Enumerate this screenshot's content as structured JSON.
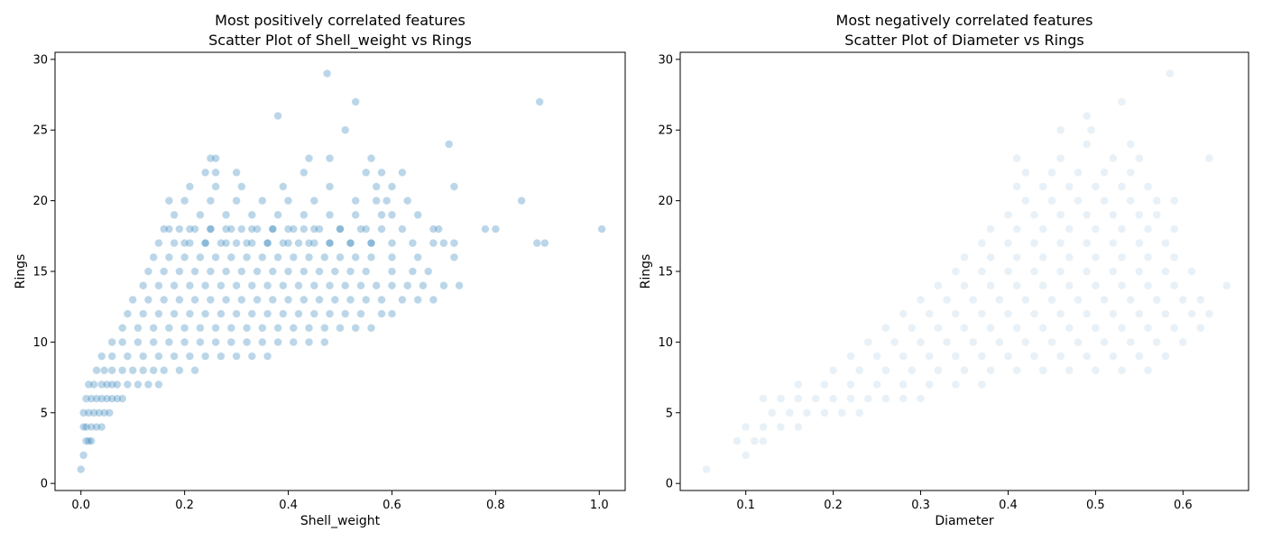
{
  "chart_data": [
    {
      "type": "scatter",
      "title": "Most positively correlated features",
      "subtitle": "Scatter Plot of Shell_weight vs Rings",
      "xlabel": "Shell_weight",
      "ylabel": "Rings",
      "xlim": [
        -0.05,
        1.05
      ],
      "ylim": [
        -0.5,
        30.5
      ],
      "xticks": [
        "0.0",
        "0.2",
        "0.4",
        "0.6",
        "0.8",
        "1.0"
      ],
      "yticks": [
        "0",
        "5",
        "10",
        "15",
        "20",
        "25",
        "30"
      ],
      "grid": false,
      "point_color": "#1f77b4",
      "point_alpha": 0.3,
      "x": [
        0.0,
        0.005,
        0.01,
        0.015,
        0.02,
        0.005,
        0.01,
        0.02,
        0.03,
        0.04,
        0.005,
        0.015,
        0.025,
        0.035,
        0.045,
        0.055,
        0.01,
        0.02,
        0.03,
        0.04,
        0.05,
        0.06,
        0.07,
        0.08,
        0.015,
        0.025,
        0.04,
        0.05,
        0.06,
        0.07,
        0.09,
        0.11,
        0.13,
        0.15,
        0.03,
        0.045,
        0.06,
        0.08,
        0.1,
        0.12,
        0.14,
        0.16,
        0.19,
        0.22,
        0.04,
        0.06,
        0.09,
        0.12,
        0.15,
        0.18,
        0.21,
        0.24,
        0.27,
        0.3,
        0.33,
        0.36,
        0.06,
        0.08,
        0.11,
        0.14,
        0.17,
        0.2,
        0.23,
        0.26,
        0.29,
        0.32,
        0.35,
        0.38,
        0.41,
        0.44,
        0.47,
        0.08,
        0.11,
        0.14,
        0.17,
        0.2,
        0.23,
        0.26,
        0.29,
        0.32,
        0.35,
        0.38,
        0.41,
        0.44,
        0.47,
        0.5,
        0.53,
        0.56,
        0.09,
        0.12,
        0.15,
        0.18,
        0.21,
        0.24,
        0.27,
        0.3,
        0.33,
        0.36,
        0.39,
        0.42,
        0.45,
        0.48,
        0.51,
        0.54,
        0.58,
        0.6,
        0.1,
        0.13,
        0.16,
        0.19,
        0.22,
        0.25,
        0.28,
        0.31,
        0.34,
        0.37,
        0.4,
        0.43,
        0.46,
        0.49,
        0.52,
        0.55,
        0.58,
        0.62,
        0.65,
        0.68,
        0.12,
        0.15,
        0.18,
        0.21,
        0.24,
        0.27,
        0.3,
        0.33,
        0.36,
        0.39,
        0.42,
        0.45,
        0.48,
        0.51,
        0.54,
        0.57,
        0.6,
        0.63,
        0.66,
        0.7,
        0.73,
        0.13,
        0.16,
        0.19,
        0.22,
        0.25,
        0.28,
        0.31,
        0.34,
        0.37,
        0.4,
        0.43,
        0.46,
        0.49,
        0.52,
        0.55,
        0.6,
        0.64,
        0.67,
        0.14,
        0.17,
        0.2,
        0.23,
        0.26,
        0.29,
        0.32,
        0.35,
        0.38,
        0.41,
        0.44,
        0.47,
        0.5,
        0.53,
        0.56,
        0.6,
        0.65,
        0.72,
        0.15,
        0.18,
        0.21,
        0.24,
        0.27,
        0.3,
        0.33,
        0.36,
        0.39,
        0.42,
        0.45,
        0.48,
        0.52,
        0.56,
        0.6,
        0.68,
        0.16,
        0.19,
        0.22,
        0.25,
        0.28,
        0.31,
        0.34,
        0.37,
        0.4,
        0.43,
        0.46,
        0.5,
        0.54,
        0.58,
        0.62,
        0.69,
        0.2,
        0.24,
        0.28,
        0.32,
        0.36,
        0.4,
        0.44,
        0.48,
        0.52,
        0.56,
        0.64,
        0.7,
        0.72,
        0.88,
        0.895,
        0.17,
        0.21,
        0.25,
        0.29,
        0.33,
        0.37,
        0.41,
        0.45,
        0.5,
        0.55,
        0.68,
        0.78,
        0.8,
        1.005,
        0.18,
        0.23,
        0.28,
        0.33,
        0.38,
        0.43,
        0.48,
        0.53,
        0.58,
        0.6,
        0.65,
        0.17,
        0.2,
        0.25,
        0.3,
        0.35,
        0.4,
        0.45,
        0.53,
        0.57,
        0.59,
        0.63,
        0.72,
        0.85,
        0.21,
        0.26,
        0.31,
        0.39,
        0.48,
        0.57,
        0.6,
        0.24,
        0.26,
        0.3,
        0.43,
        0.55,
        0.58,
        0.62,
        0.25,
        0.26,
        0.44,
        0.48,
        0.56,
        0.71,
        0.51,
        0.38,
        0.53,
        0.885,
        0.475
      ],
      "y": [
        1,
        2,
        3,
        3,
        3,
        4,
        4,
        4,
        4,
        4,
        5,
        5,
        5,
        5,
        5,
        5,
        6,
        6,
        6,
        6,
        6,
        6,
        6,
        6,
        7,
        7,
        7,
        7,
        7,
        7,
        7,
        7,
        7,
        7,
        8,
        8,
        8,
        8,
        8,
        8,
        8,
        8,
        8,
        8,
        9,
        9,
        9,
        9,
        9,
        9,
        9,
        9,
        9,
        9,
        9,
        9,
        10,
        10,
        10,
        10,
        10,
        10,
        10,
        10,
        10,
        10,
        10,
        10,
        10,
        10,
        10,
        11,
        11,
        11,
        11,
        11,
        11,
        11,
        11,
        11,
        11,
        11,
        11,
        11,
        11,
        11,
        11,
        11,
        12,
        12,
        12,
        12,
        12,
        12,
        12,
        12,
        12,
        12,
        12,
        12,
        12,
        12,
        12,
        12,
        12,
        12,
        13,
        13,
        13,
        13,
        13,
        13,
        13,
        13,
        13,
        13,
        13,
        13,
        13,
        13,
        13,
        13,
        13,
        13,
        13,
        13,
        14,
        14,
        14,
        14,
        14,
        14,
        14,
        14,
        14,
        14,
        14,
        14,
        14,
        14,
        14,
        14,
        14,
        14,
        14,
        14,
        14,
        15,
        15,
        15,
        15,
        15,
        15,
        15,
        15,
        15,
        15,
        15,
        15,
        15,
        15,
        15,
        15,
        15,
        15,
        16,
        16,
        16,
        16,
        16,
        16,
        16,
        16,
        16,
        16,
        16,
        16,
        16,
        16,
        16,
        16,
        16,
        16,
        17,
        17,
        17,
        17,
        17,
        17,
        17,
        17,
        17,
        17,
        17,
        17,
        17,
        17,
        17,
        17,
        18,
        18,
        18,
        18,
        18,
        18,
        18,
        18,
        18,
        18,
        18,
        18,
        18,
        18,
        18,
        18,
        17,
        17,
        17,
        17,
        17,
        17,
        17,
        17,
        17,
        17,
        17,
        17,
        17,
        17,
        17,
        18,
        18,
        18,
        18,
        18,
        18,
        18,
        18,
        18,
        18,
        18,
        18,
        18,
        18,
        19,
        19,
        19,
        19,
        19,
        19,
        19,
        19,
        19,
        19,
        19,
        20,
        20,
        20,
        20,
        20,
        20,
        20,
        20,
        20,
        20,
        20,
        21,
        20,
        21,
        21,
        21,
        21,
        21,
        21,
        21,
        22,
        22,
        22,
        22,
        22,
        22,
        22,
        23,
        23,
        23,
        23,
        23,
        24,
        25,
        26,
        27,
        27,
        29
      ],
      "alphas": []
    },
    {
      "type": "scatter",
      "title": "Most negatively correlated features",
      "subtitle": "Scatter Plot of Diameter vs Rings",
      "xlabel": "Diameter",
      "ylabel": "Rings",
      "xlim": [
        0.025,
        0.675
      ],
      "ylim": [
        -0.5,
        30.5
      ],
      "xticks": [
        "0.1",
        "0.2",
        "0.3",
        "0.4",
        "0.5",
        "0.6"
      ],
      "yticks": [
        "0",
        "5",
        "10",
        "15",
        "20",
        "25",
        "30"
      ],
      "grid": false,
      "point_color": "#1f77b4",
      "point_alpha": 0.1,
      "x": [
        0.055,
        0.1,
        0.09,
        0.11,
        0.12,
        0.1,
        0.12,
        0.14,
        0.16,
        0.13,
        0.15,
        0.17,
        0.19,
        0.21,
        0.23,
        0.12,
        0.14,
        0.16,
        0.18,
        0.2,
        0.22,
        0.24,
        0.26,
        0.28,
        0.3,
        0.16,
        0.19,
        0.22,
        0.25,
        0.28,
        0.31,
        0.34,
        0.37,
        0.2,
        0.23,
        0.26,
        0.29,
        0.32,
        0.35,
        0.38,
        0.41,
        0.44,
        0.47,
        0.5,
        0.53,
        0.56,
        0.22,
        0.25,
        0.28,
        0.31,
        0.34,
        0.37,
        0.4,
        0.43,
        0.46,
        0.49,
        0.52,
        0.55,
        0.58,
        0.24,
        0.27,
        0.3,
        0.33,
        0.36,
        0.39,
        0.42,
        0.45,
        0.48,
        0.51,
        0.54,
        0.57,
        0.6,
        0.26,
        0.29,
        0.32,
        0.35,
        0.38,
        0.41,
        0.44,
        0.47,
        0.5,
        0.53,
        0.56,
        0.59,
        0.62,
        0.28,
        0.31,
        0.34,
        0.37,
        0.4,
        0.43,
        0.46,
        0.49,
        0.52,
        0.55,
        0.58,
        0.61,
        0.63,
        0.3,
        0.33,
        0.36,
        0.39,
        0.42,
        0.45,
        0.48,
        0.51,
        0.54,
        0.57,
        0.6,
        0.62,
        0.32,
        0.35,
        0.38,
        0.41,
        0.44,
        0.47,
        0.5,
        0.53,
        0.56,
        0.59,
        0.65,
        0.34,
        0.37,
        0.4,
        0.43,
        0.46,
        0.49,
        0.52,
        0.55,
        0.58,
        0.61,
        0.35,
        0.38,
        0.41,
        0.44,
        0.47,
        0.5,
        0.53,
        0.56,
        0.59,
        0.37,
        0.4,
        0.43,
        0.46,
        0.49,
        0.52,
        0.55,
        0.58,
        0.38,
        0.41,
        0.44,
        0.47,
        0.5,
        0.53,
        0.56,
        0.59,
        0.4,
        0.43,
        0.46,
        0.49,
        0.52,
        0.55,
        0.57,
        0.42,
        0.45,
        0.48,
        0.51,
        0.54,
        0.57,
        0.59,
        0.41,
        0.44,
        0.47,
        0.5,
        0.53,
        0.56,
        0.42,
        0.45,
        0.48,
        0.51,
        0.54,
        0.41,
        0.46,
        0.52,
        0.55,
        0.63,
        0.49,
        0.54,
        0.46,
        0.49,
        0.495,
        0.53,
        0.585
      ],
      "y": [
        1,
        2,
        3,
        3,
        3,
        4,
        4,
        4,
        4,
        5,
        5,
        5,
        5,
        5,
        5,
        6,
        6,
        6,
        6,
        6,
        6,
        6,
        6,
        6,
        6,
        7,
        7,
        7,
        7,
        7,
        7,
        7,
        7,
        8,
        8,
        8,
        8,
        8,
        8,
        8,
        8,
        8,
        8,
        8,
        8,
        8,
        9,
        9,
        9,
        9,
        9,
        9,
        9,
        9,
        9,
        9,
        9,
        9,
        9,
        10,
        10,
        10,
        10,
        10,
        10,
        10,
        10,
        10,
        10,
        10,
        10,
        10,
        11,
        11,
        11,
        11,
        11,
        11,
        11,
        11,
        11,
        11,
        11,
        11,
        11,
        12,
        12,
        12,
        12,
        12,
        12,
        12,
        12,
        12,
        12,
        12,
        12,
        12,
        13,
        13,
        13,
        13,
        13,
        13,
        13,
        13,
        13,
        13,
        13,
        13,
        14,
        14,
        14,
        14,
        14,
        14,
        14,
        14,
        14,
        14,
        14,
        15,
        15,
        15,
        15,
        15,
        15,
        15,
        15,
        15,
        15,
        16,
        16,
        16,
        16,
        16,
        16,
        16,
        16,
        16,
        17,
        17,
        17,
        17,
        17,
        17,
        17,
        17,
        18,
        18,
        18,
        18,
        18,
        18,
        18,
        18,
        19,
        19,
        19,
        19,
        19,
        19,
        19,
        20,
        20,
        20,
        20,
        20,
        20,
        20,
        21,
        21,
        21,
        21,
        21,
        21,
        22,
        22,
        22,
        22,
        22,
        23,
        23,
        23,
        23,
        23,
        24,
        24,
        25,
        26,
        25,
        27,
        29
      ],
      "alphas": []
    }
  ]
}
